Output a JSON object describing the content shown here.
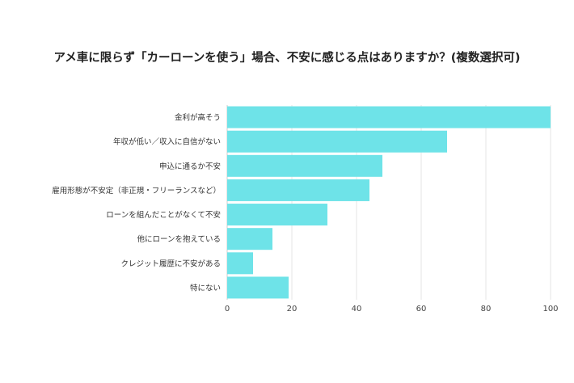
{
  "chart_data": {
    "type": "bar",
    "orientation": "horizontal",
    "title": "アメ車に限らず「カーローンを使う」場合、不安に感じる点はありますか？(複数選択可)",
    "categories": [
      "金利が高そう",
      "年収が低い／収入に自信がない",
      "申込に通るか不安",
      "雇用形態が不安定（非正規・フリーランスなど）",
      "ローンを組んだことがなくて不安",
      "他にローンを抱えている",
      "クレジット履歴に不安がある",
      "特にない"
    ],
    "values": [
      100,
      68,
      48,
      44,
      31,
      14,
      8,
      19
    ],
    "xlim": [
      0,
      100
    ],
    "xticks": [
      0,
      20,
      40,
      60,
      80,
      100
    ],
    "grid": true,
    "legend": "none",
    "bar_color": "#6ee3e8",
    "grid_color": "#e6e6e6"
  }
}
